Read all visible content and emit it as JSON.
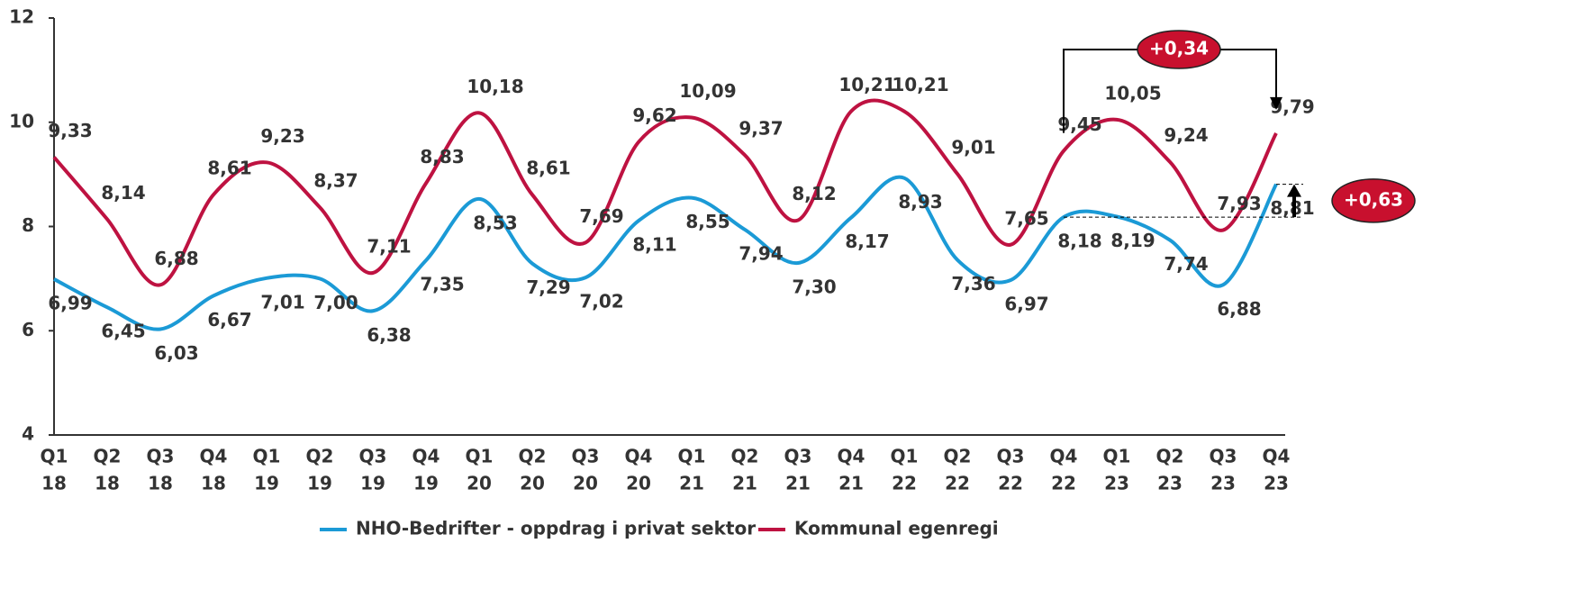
{
  "chart_data": {
    "type": "line",
    "categories": [
      [
        "Q1",
        "18"
      ],
      [
        "Q2",
        "18"
      ],
      [
        "Q3",
        "18"
      ],
      [
        "Q4",
        "18"
      ],
      [
        "Q1",
        "19"
      ],
      [
        "Q2",
        "19"
      ],
      [
        "Q3",
        "19"
      ],
      [
        "Q4",
        "19"
      ],
      [
        "Q1",
        "20"
      ],
      [
        "Q2",
        "20"
      ],
      [
        "Q3",
        "20"
      ],
      [
        "Q4",
        "20"
      ],
      [
        "Q1",
        "21"
      ],
      [
        "Q2",
        "21"
      ],
      [
        "Q3",
        "21"
      ],
      [
        "Q4",
        "21"
      ],
      [
        "Q1",
        "22"
      ],
      [
        "Q2",
        "22"
      ],
      [
        "Q3",
        "22"
      ],
      [
        "Q4",
        "22"
      ],
      [
        "Q1",
        "23"
      ],
      [
        "Q2",
        "23"
      ],
      [
        "Q3",
        "23"
      ],
      [
        "Q4",
        "23"
      ]
    ],
    "series": [
      {
        "name": "NHO-Bedrifter - oppdrag i privat sektor",
        "color": "#1b9ad6",
        "values": [
          6.99,
          6.45,
          6.03,
          6.67,
          7.01,
          7.0,
          6.38,
          7.35,
          8.53,
          7.29,
          7.02,
          8.11,
          8.55,
          7.94,
          7.3,
          8.17,
          8.93,
          7.36,
          6.97,
          8.18,
          8.19,
          7.74,
          6.88,
          8.81
        ],
        "value_labels": [
          "6,99",
          "6,45",
          "6,03",
          "6,67",
          "7,01",
          "7,00",
          "6,38",
          "7,35",
          "8,53",
          "7,29",
          "7,02",
          "8,11",
          "8,55",
          "7,94",
          "7,30",
          "8,17",
          "8,93",
          "7,36",
          "6,97",
          "8,18",
          "8,19",
          "7,74",
          "6,88",
          "8,81"
        ]
      },
      {
        "name": "Kommunal egenregi",
        "color": "#be1241",
        "values": [
          9.33,
          8.14,
          6.88,
          8.61,
          9.23,
          8.37,
          7.11,
          8.83,
          10.18,
          8.61,
          7.69,
          9.62,
          10.09,
          9.37,
          8.12,
          10.21,
          10.21,
          9.01,
          7.65,
          9.45,
          10.05,
          9.24,
          7.93,
          9.79
        ],
        "value_labels": [
          "9,33",
          "8,14",
          "6,88",
          "8,61",
          "9,23",
          "8,37",
          "7,11",
          "8,83",
          "10,18",
          "8,61",
          "7,69",
          "9,62",
          "10,09",
          "9,37",
          "8,12",
          "10,21",
          "10,21",
          "9,01",
          "7,65",
          "9,45",
          "10,05",
          "9,24",
          "7,93",
          "9,79"
        ]
      }
    ],
    "ylim": [
      4,
      12
    ],
    "yticks": [
      4,
      6,
      8,
      10,
      12
    ],
    "grid": false,
    "annotations": [
      "+0,34",
      "+0,63"
    ]
  }
}
